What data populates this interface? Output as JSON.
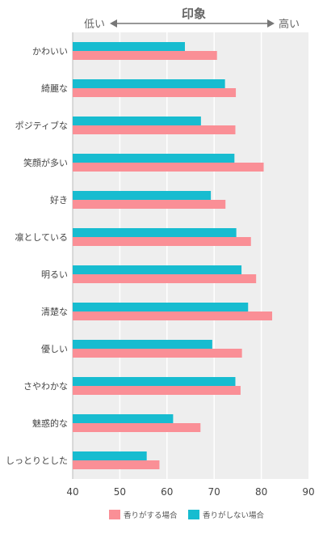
{
  "chart_data": {
    "type": "bar",
    "orientation": "horizontal",
    "title": "印象",
    "top_axis": {
      "low_label": "低い",
      "high_label": "高い"
    },
    "categories": [
      "かわいい",
      "綺麗な",
      "ポジティブな",
      "笑顔が多い",
      "好き",
      "凛としている",
      "明るい",
      "清楚な",
      "優しい",
      "さやわかな",
      "魅惑的な",
      "しっとりとした"
    ],
    "series": [
      {
        "name": "香りがしない場合",
        "color": "#17bcd0",
        "values": [
          63.8,
          72.3,
          67.2,
          74.3,
          69.3,
          74.7,
          75.8,
          77.2,
          69.6,
          74.5,
          61.3,
          55.7
        ]
      },
      {
        "name": "香りがする場合",
        "color": "#fa8f96",
        "values": [
          70.6,
          74.6,
          74.5,
          80.5,
          72.4,
          77.8,
          78.9,
          82.3,
          75.9,
          75.6,
          67.1,
          58.4
        ]
      }
    ],
    "legend_order": [
      "香りがする場合",
      "香りがしない場合"
    ],
    "xlim": [
      40,
      90
    ],
    "xticks": [
      40,
      50,
      60,
      70,
      80,
      90
    ],
    "grid": true,
    "legend_position": "bottom"
  }
}
